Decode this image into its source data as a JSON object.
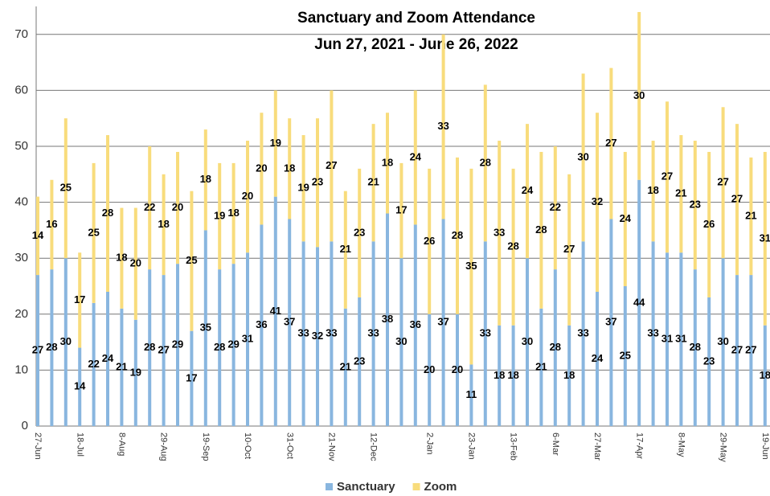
{
  "chart_data": {
    "type": "stacked_bar",
    "title": "Sanctuary and Zoom Attendance",
    "subtitle": "Jun 27, 2021  -  June 26, 2022",
    "categories": [
      "27-Jun",
      null,
      null,
      "18-Jul",
      null,
      null,
      "8-Aug",
      null,
      null,
      "29-Aug",
      null,
      null,
      "19-Sep",
      null,
      null,
      "10-Oct",
      null,
      null,
      "31-Oct",
      null,
      null,
      "21-Nov",
      null,
      null,
      "12-Dec",
      null,
      null,
      null,
      "2-Jan",
      null,
      null,
      "23-Jan",
      null,
      null,
      "13-Feb",
      null,
      null,
      "6-Mar",
      null,
      null,
      "27-Mar",
      null,
      null,
      "17-Apr",
      null,
      null,
      "8-May",
      null,
      null,
      "29-May",
      null,
      null,
      "19-Jun"
    ],
    "series": [
      {
        "name": "Sanctuary",
        "color": "#89b6df",
        "values": [
          27,
          28,
          30,
          14,
          22,
          24,
          21,
          19,
          28,
          27,
          29,
          17,
          35,
          28,
          29,
          31,
          36,
          41,
          37,
          33,
          32,
          33,
          21,
          23,
          33,
          38,
          30,
          36,
          20,
          37,
          20,
          11,
          33,
          18,
          18,
          30,
          21,
          28,
          18,
          33,
          24,
          37,
          25,
          44,
          33,
          31,
          31,
          28,
          23,
          30,
          27,
          27,
          18
        ]
      },
      {
        "name": "Zoom",
        "color": "#f8dc7c",
        "values": [
          14,
          16,
          25,
          17,
          25,
          28,
          18,
          20,
          22,
          18,
          20,
          25,
          18,
          19,
          18,
          20,
          20,
          19,
          18,
          19,
          23,
          27,
          21,
          23,
          21,
          18,
          17,
          24,
          26,
          33,
          28,
          35,
          28,
          33,
          28,
          24,
          28,
          22,
          27,
          30,
          32,
          27,
          24,
          30,
          18,
          27,
          21,
          23,
          26,
          27,
          27,
          21,
          31
        ]
      }
    ],
    "ylim": [
      0,
      75
    ],
    "yticks": [
      0,
      10,
      20,
      30,
      40,
      50,
      60,
      70
    ],
    "grid": true,
    "legend": "bottom"
  }
}
